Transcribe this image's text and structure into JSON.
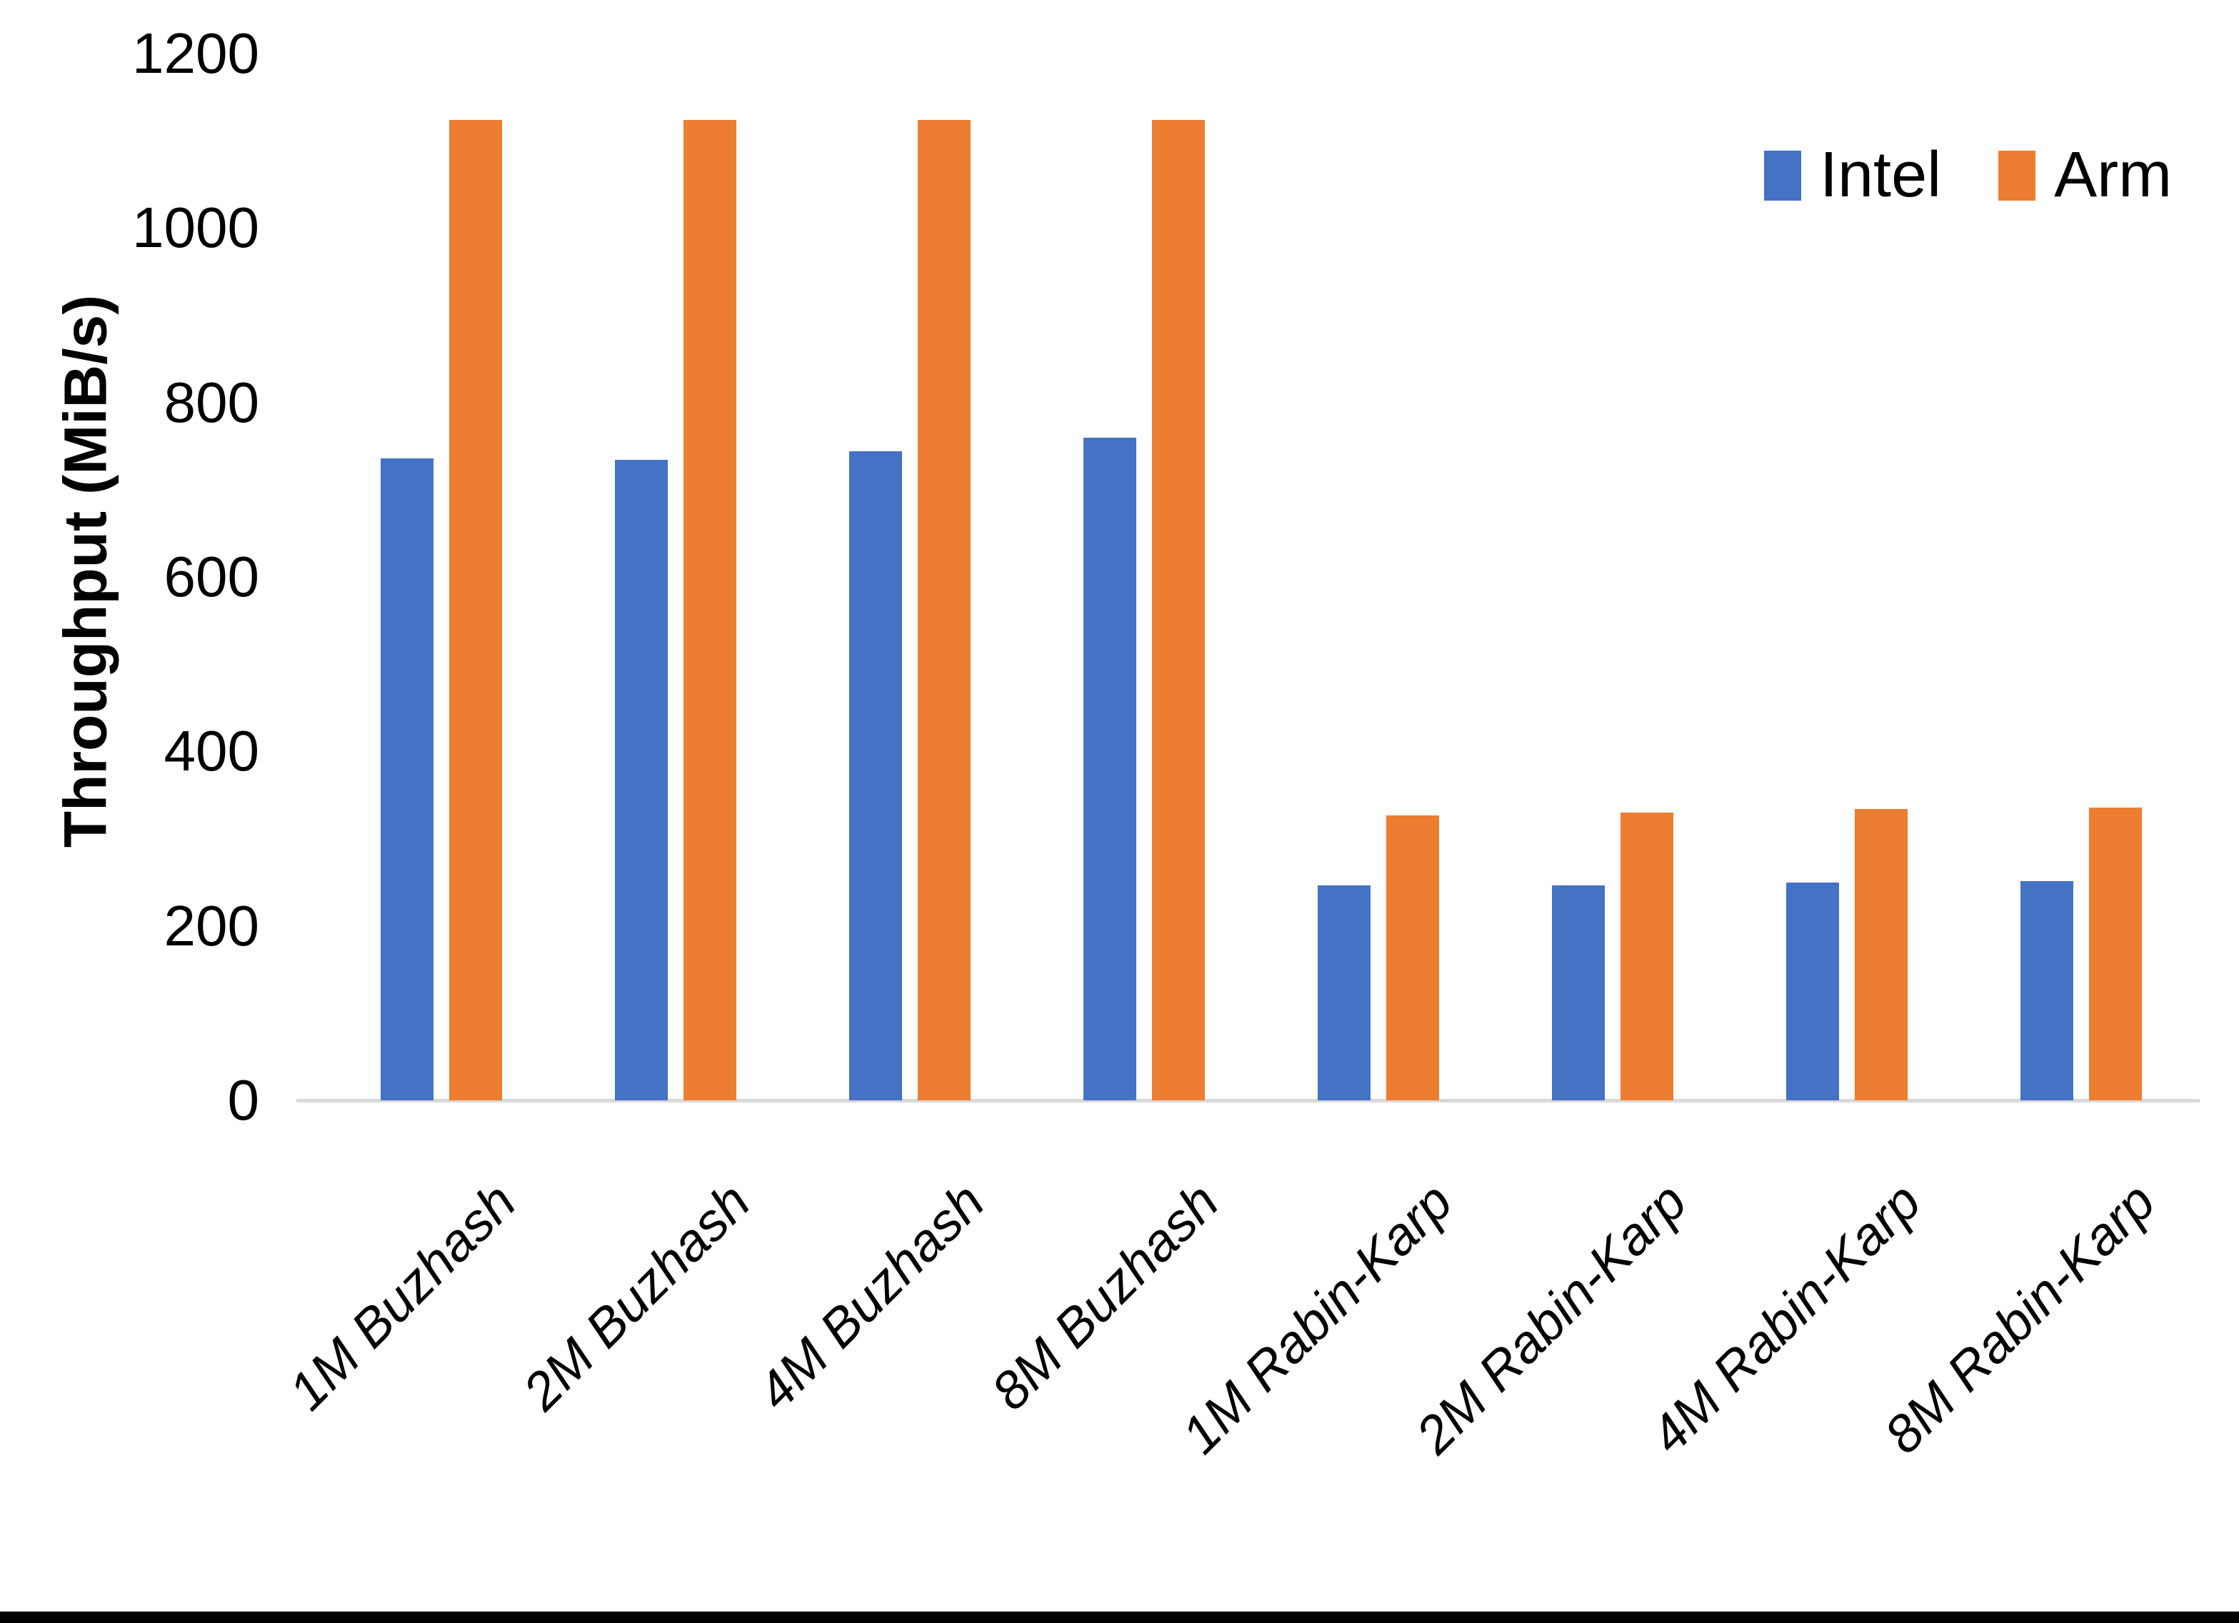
{
  "chart_data": {
    "type": "bar",
    "title": "",
    "xlabel": "",
    "ylabel": "Throughput (MiB/s)",
    "categories": [
      "1M Buzhash",
      "2M Buzhash",
      "4M Buzhash",
      "8M Buzhash",
      "1M Rabin-Karp",
      "2M Rabin-Karp",
      "4M Rabin-Karp",
      "8M Rabin-Karp"
    ],
    "series": [
      {
        "name": "Intel",
        "color": "#4472C4",
        "values": [
          736,
          734,
          744,
          760,
          246,
          246,
          250,
          251
        ]
      },
      {
        "name": "Arm",
        "color": "#ED7D31",
        "values": [
          1124,
          1124,
          1124,
          1124,
          327,
          330,
          334,
          336
        ]
      }
    ],
    "ylim": [
      0,
      1200
    ],
    "yticks": [
      0,
      200,
      400,
      600,
      800,
      1000,
      1200
    ],
    "grid": false,
    "legend_position": "top-right",
    "axis_line_color": "#D9D9D9",
    "text_color": "#000000",
    "background_color": "#ffffff",
    "bottom_edge_color": "#000000"
  }
}
